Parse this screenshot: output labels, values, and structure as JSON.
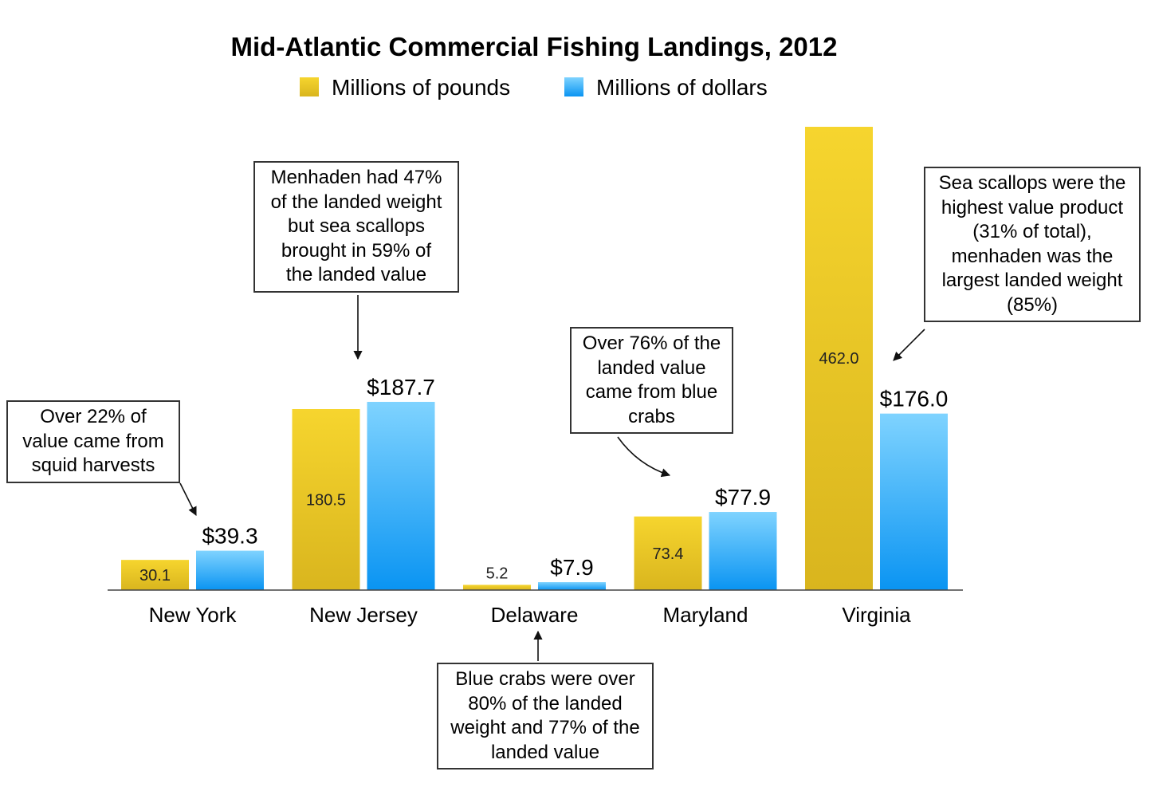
{
  "chart_data": {
    "type": "bar",
    "title": "Mid-Atlantic Commercial Fishing Landings, 2012",
    "categories": [
      "New York",
      "New Jersey",
      "Delaware",
      "Maryland",
      "Virginia"
    ],
    "series": [
      {
        "name": "Millions of pounds",
        "values": [
          30.1,
          180.5,
          5.2,
          73.4,
          462.0
        ],
        "labels": [
          "30.1",
          "180.5",
          "5.2",
          "73.4",
          "462.0"
        ],
        "color": "#E8C020"
      },
      {
        "name": "Millions of dollars",
        "values": [
          39.3,
          187.7,
          7.9,
          77.9,
          176.0
        ],
        "labels": [
          "$39.3",
          "$187.7",
          "$7.9",
          "$77.9",
          "$176.0"
        ],
        "color": "#2AA8F2"
      }
    ],
    "legend": "top-center",
    "grid": false,
    "ylim": [
      0,
      462
    ],
    "annotations": [
      {
        "category": "New York",
        "text": [
          "Over 22% of",
          "value came from",
          "squid harvests"
        ]
      },
      {
        "category": "New Jersey",
        "text": [
          "Menhaden had 47%",
          "of the landed weight",
          "but sea scallops",
          "brought in 59% of",
          "the landed value"
        ]
      },
      {
        "category": "Delaware",
        "text": [
          "Blue crabs were over",
          "80% of the landed",
          "weight and 77% of the",
          "landed value"
        ]
      },
      {
        "category": "Maryland",
        "text": [
          "Over 76% of the",
          "landed value",
          "came from blue",
          "crabs"
        ]
      },
      {
        "category": "Virginia",
        "text": [
          "Sea scallops were the",
          "highest value product",
          "(31% of total),",
          "menhaden was the",
          "largest landed weight",
          "(85%)"
        ]
      }
    ]
  }
}
